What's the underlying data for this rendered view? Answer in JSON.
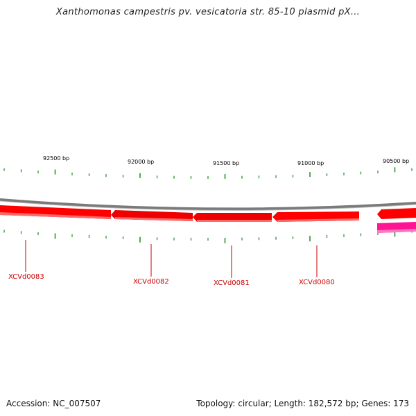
{
  "title": "Xanthomonas campestris pv. vesicatoria str. 85-10 plasmid pX...",
  "footer": {
    "accession": "Accession: NC_007507",
    "summary": "Topology: circular; Length: 182,572 bp; Genes: 173"
  },
  "colors": {
    "backbone": "#8a8a8a",
    "gene_forward": "#ff0000",
    "gene_highlight": "#ff1493",
    "tick": "#1a8a1a",
    "gene_label": "#cc0000"
  },
  "scale_labels": [
    "92500 bp",
    "92000 bp",
    "91500 bp",
    "91000 bp",
    "90500 bp"
  ],
  "genes": [
    {
      "label": "XCVd0083"
    },
    {
      "label": "XCVd0082"
    },
    {
      "label": "XCVd0081"
    },
    {
      "label": "XCVd0080"
    },
    {
      "label": ""
    }
  ]
}
